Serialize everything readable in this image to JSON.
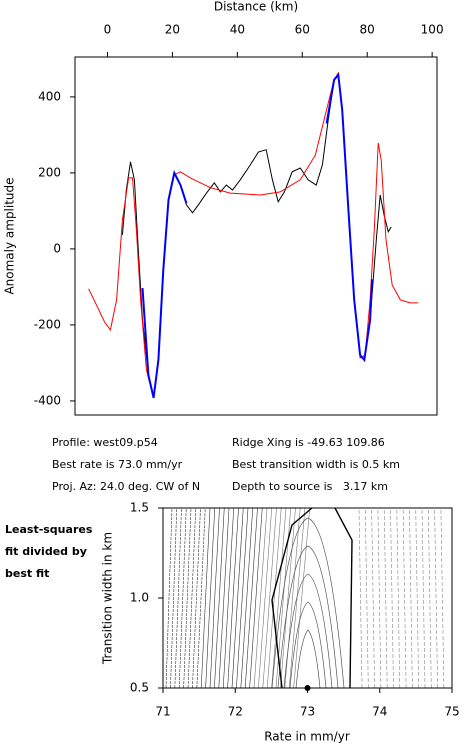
{
  "chart_data": [
    {
      "type": "line",
      "title": "Distance (km)",
      "ylabel": "Anomaly amplitude",
      "xlim": [
        -10,
        101.5
      ],
      "xticks": [
        0,
        20,
        40,
        60,
        80,
        100
      ],
      "ylim": [
        -437,
        505
      ],
      "yticks": [
        -400,
        -200,
        0,
        200,
        400
      ],
      "series": [
        {
          "color": "#000000",
          "x": [
            4.6,
            5.8,
            7.1,
            8.3,
            9.5,
            10.8,
            12.6,
            14.2,
            15.7,
            17.2,
            18.8,
            20.6,
            22.5,
            24.3,
            26.2,
            28,
            30.5,
            32.9,
            34.8,
            36.6,
            38.5,
            40.9,
            44,
            46.5,
            48.9,
            50.8,
            52.6,
            54.5,
            56.9,
            59.4,
            61.8,
            64.3,
            66.2,
            68,
            69.8,
            71.1,
            72.3,
            74.2,
            76,
            77.8,
            79.1,
            80.9,
            82.8,
            84,
            85.2,
            86.5,
            87.4
          ],
          "values": [
            37,
            155,
            229,
            182,
            -3,
            -187,
            -332,
            -392,
            -292,
            -55,
            129,
            200,
            168,
            116,
            95,
            116,
            147,
            174,
            150,
            168,
            155,
            182,
            221,
            255,
            261,
            182,
            124,
            150,
            203,
            213,
            182,
            168,
            221,
            339,
            445,
            458,
            366,
            103,
            -134,
            -279,
            -292,
            -187,
            24,
            142,
            89,
            45,
            58
          ]
        },
        {
          "color": "#ff0000",
          "x": [
            -5.8,
            -3.4,
            -0.9,
            0.9,
            2.8,
            4.6,
            6.5,
            7.7,
            8.9,
            10.2,
            12,
            14.2,
            15.7,
            17.2,
            18.8,
            20.6,
            22.5,
            25.5,
            31.7,
            37.8,
            47.1,
            53.2,
            59.4,
            64,
            67.1,
            69.8,
            71.1,
            72.3,
            74.2,
            76,
            77.8,
            79.4,
            80.9,
            82.2,
            83.4,
            84.3,
            85.8,
            87.7,
            90.2,
            93.2,
            95.7
          ],
          "values": [
            -105,
            -147,
            -192,
            -213,
            -134,
            76,
            187,
            187,
            50,
            -134,
            -318,
            -392,
            -292,
            -55,
            129,
            195,
            203,
            187,
            161,
            147,
            142,
            150,
            182,
            247,
            353,
            445,
            463,
            366,
            103,
            -134,
            -287,
            -279,
            -134,
            50,
            279,
            234,
            24,
            -95,
            -134,
            -142,
            -142
          ]
        },
        {
          "color": "#0000ff",
          "x": [
            10.8,
            12.6,
            14.2,
            15.7,
            17.2,
            18.8,
            20.6,
            22.5,
            24.3,
            null,
            67.5,
            69.8,
            71.1,
            72.3,
            74.2,
            76,
            77.8,
            79.1,
            80.9,
            81.5
          ],
          "values": [
            -103,
            -332,
            -392,
            -292,
            -55,
            129,
            200,
            168,
            120,
            null,
            330,
            445,
            458,
            366,
            103,
            -134,
            -279,
            -292,
            -187,
            -80
          ]
        }
      ]
    },
    {
      "type": "contour",
      "xlabel": "Rate in mm/yr",
      "ylabel": "Transition width in km",
      "annotation": [
        "Least-squares",
        "fit divided by",
        "best fit"
      ],
      "xlim": [
        71,
        75
      ],
      "xticks": [
        71,
        72,
        73,
        74,
        75
      ],
      "ylim": [
        0.5,
        1.5
      ],
      "yticks": [
        0.5,
        {
          "value": 1,
          "label": "1.0"
        },
        1.5
      ],
      "best_fit": {
        "x": 73,
        "y": 0.5
      }
    }
  ],
  "info": {
    "left": [
      "Profile: west09.p54",
      "Best rate is 73.0 mm/yr",
      "Proj. Az: 24.0 deg. CW of N"
    ],
    "right": [
      "Ridge Xing is -49.63 109.86",
      "Best transition width is 0.5 km",
      "Depth to source is   3.17 km"
    ]
  }
}
